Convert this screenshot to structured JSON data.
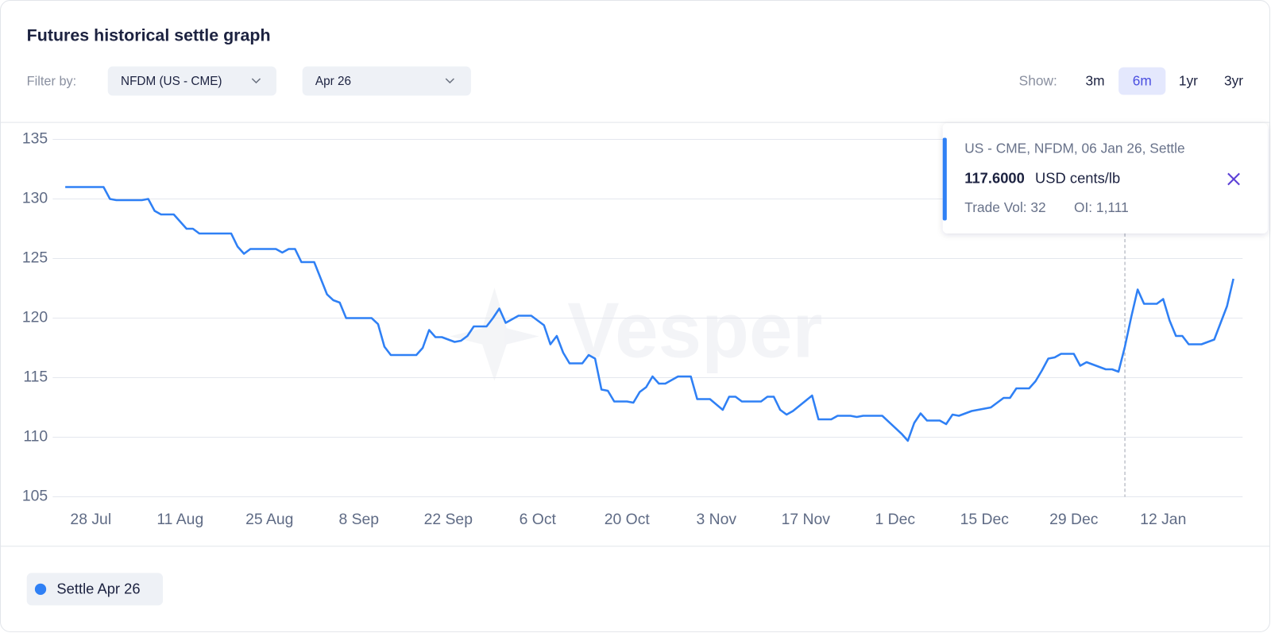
{
  "header": {
    "title": "Futures historical settle graph"
  },
  "filters": {
    "label": "Filter by:",
    "product": "NFDM (US - CME)",
    "contract": "Apr 26"
  },
  "range": {
    "label": "Show:",
    "options": [
      "3m",
      "6m",
      "1yr",
      "3yr"
    ],
    "selected": 1
  },
  "watermark": "Vesper",
  "tooltip": {
    "heading": "US - CME, NFDM, 06 Jan 26, Settle",
    "value": "117.6000",
    "unit": "USD cents/lb",
    "volume": "Trade Vol: 32",
    "open_interest": "OI: 1,111"
  },
  "chart_data": {
    "type": "line",
    "x": [
      "24 Jul",
      "30 Jul",
      "31 Jul",
      "1 Aug",
      "5 Aug",
      "6 Aug",
      "7 Aug",
      "8 Aug",
      "10 Aug",
      "12 Aug",
      "13 Aug",
      "14 Aug",
      "19 Aug",
      "20 Aug",
      "21 Aug",
      "22 Aug",
      "26 Aug",
      "27 Aug",
      "28 Aug",
      "29 Aug",
      "30 Aug",
      "1 Sep",
      "3 Sep",
      "4 Sep",
      "5 Sep",
      "6 Sep",
      "10 Sep",
      "11 Sep",
      "12 Sep",
      "13 Sep",
      "17 Sep",
      "18 Sep",
      "19 Sep",
      "20 Sep",
      "21 Sep",
      "23 Sep",
      "24 Sep",
      "25 Sep",
      "26 Sep",
      "28 Sep",
      "29 Sep",
      "30 Sep",
      "1 Oct",
      "3 Oct",
      "5 Oct",
      "6 Oct",
      "7 Oct",
      "8 Oct",
      "9 Oct",
      "10 Oct",
      "11 Oct",
      "13 Oct",
      "14 Oct",
      "15 Oct",
      "16 Oct",
      "17 Oct",
      "18 Oct",
      "20 Oct",
      "21 Oct",
      "22 Oct",
      "23 Oct",
      "24 Oct",
      "25 Oct",
      "26 Oct",
      "28 Oct",
      "30 Oct",
      "31 Oct",
      "2 Nov",
      "4 Nov",
      "5 Nov",
      "6 Nov",
      "7 Nov",
      "10 Nov",
      "11 Nov",
      "12 Nov",
      "13 Nov",
      "14 Nov",
      "15 Nov",
      "18 Nov",
      "19 Nov",
      "21 Nov",
      "22 Nov",
      "24 Nov",
      "25 Nov",
      "26 Nov",
      "29 Nov",
      "2 Dec",
      "3 Dec",
      "4 Dec",
      "5 Dec",
      "6 Dec",
      "8 Dec",
      "9 Dec",
      "10 Dec",
      "11 Dec",
      "12 Dec",
      "13 Dec",
      "16 Dec",
      "17 Dec",
      "18 Dec",
      "19 Dec",
      "20 Dec",
      "22 Dec",
      "23 Dec",
      "24 Dec",
      "25 Dec",
      "26 Dec",
      "27 Dec",
      "29 Dec",
      "30 Dec",
      "31 Dec",
      "1 Jan",
      "3 Jan",
      "4 Jan",
      "5 Jan",
      "6 Jan",
      "7 Jan",
      "8 Jan",
      "9 Jan",
      "11 Jan",
      "12 Jan",
      "13 Jan",
      "14 Jan",
      "15 Jan",
      "16 Jan",
      "18 Jan",
      "19 Jan",
      "20 Jan",
      "22 Jan",
      "23 Jan"
    ],
    "series": [
      {
        "name": "Settle Apr 26",
        "color": "#2f80f5",
        "values": [
          131.0,
          131.0,
          130.0,
          129.9,
          129.9,
          130.0,
          129.0,
          128.7,
          128.7,
          127.5,
          127.5,
          127.1,
          127.1,
          126.0,
          125.4,
          125.8,
          125.8,
          125.5,
          125.8,
          125.8,
          124.7,
          124.7,
          122.0,
          121.5,
          121.3,
          120.0,
          120.0,
          119.5,
          117.6,
          116.9,
          116.9,
          117.5,
          119.0,
          118.4,
          118.4,
          118.0,
          118.1,
          118.5,
          119.3,
          119.3,
          120.0,
          120.8,
          119.6,
          120.2,
          120.2,
          119.8,
          119.4,
          117.8,
          118.5,
          117.1,
          116.2,
          116.2,
          116.9,
          116.6,
          114.0,
          113.9,
          113.0,
          113.0,
          112.9,
          113.8,
          114.2,
          115.1,
          114.5,
          114.5,
          115.1,
          115.1,
          113.2,
          113.2,
          112.3,
          113.4,
          113.4,
          113.0,
          113.0,
          113.4,
          113.4,
          112.3,
          111.9,
          112.2,
          113.5,
          111.5,
          111.5,
          111.8,
          111.8,
          111.7,
          111.8,
          111.8,
          110.3,
          109.7,
          111.2,
          112.0,
          111.4,
          111.4,
          111.1,
          111.9,
          111.8,
          112.0,
          112.2,
          112.5,
          112.9,
          113.3,
          113.3,
          114.1,
          114.1,
          114.7,
          115.6,
          116.6,
          116.7,
          117.0,
          117.0,
          116.0,
          116.3,
          116.1,
          115.7,
          115.7,
          115.5,
          117.6,
          120.1,
          122.4,
          121.2,
          121.2,
          121.6,
          119.8,
          118.5,
          118.5,
          117.8,
          117.8,
          118.0,
          118.2,
          121.0,
          123.3
        ]
      }
    ],
    "xticks": [
      "28 Jul",
      "11 Aug",
      "25 Aug",
      "8 Sep",
      "22 Sep",
      "6 Oct",
      "20 Oct",
      "3 Nov",
      "17 Nov",
      "1 Dec",
      "15 Dec",
      "29 Dec",
      "12 Jan"
    ],
    "ylim": [
      105,
      135
    ],
    "yticks": [
      105,
      110,
      115,
      120,
      125,
      130,
      135
    ],
    "grid": true,
    "crosshair_x": "6 Jan"
  }
}
